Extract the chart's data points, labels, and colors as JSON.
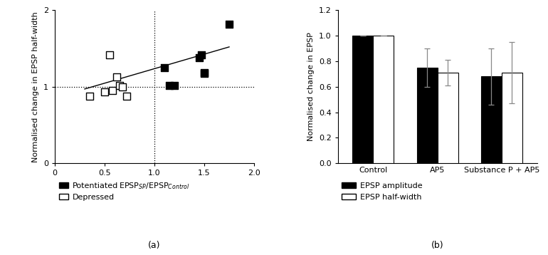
{
  "scatter": {
    "potentiated_x": [
      1.1,
      1.2,
      1.45,
      1.47,
      1.5,
      1.5,
      1.15,
      1.75
    ],
    "potentiated_y": [
      1.25,
      1.02,
      1.38,
      1.42,
      1.17,
      1.18,
      1.02,
      1.82
    ],
    "depressed_x": [
      0.35,
      0.5,
      0.55,
      0.58,
      0.62,
      0.65,
      0.68,
      0.72
    ],
    "depressed_y": [
      0.88,
      0.93,
      1.42,
      0.95,
      1.13,
      1.02,
      1.0,
      0.88
    ],
    "fit_x": [
      0.3,
      1.75
    ],
    "fit_y": [
      0.97,
      1.52
    ],
    "xlabel": "EPSP$_{SP}$/EPSP$_{Control}$",
    "ylabel": "Normalised change in EPSP half-width",
    "xlim": [
      0,
      2.0
    ],
    "ylim": [
      0,
      2.0
    ],
    "xticks": [
      0,
      0.5,
      1.0,
      1.5,
      2.0
    ],
    "yticks": [
      0,
      1,
      2
    ],
    "hline": 1.0,
    "vline": 1.0,
    "label_a": "(a)"
  },
  "bar": {
    "categories": [
      "Control",
      "AP5",
      "Substance P + AP5"
    ],
    "amplitude_values": [
      1.0,
      0.75,
      0.68
    ],
    "halfwidth_values": [
      1.0,
      0.71,
      0.71
    ],
    "amplitude_errors": [
      0.0,
      0.15,
      0.22
    ],
    "halfwidth_errors": [
      0.0,
      0.1,
      0.24
    ],
    "ylabel": "Normalised change in EPSP",
    "ylim": [
      0,
      1.2
    ],
    "yticks": [
      0.0,
      0.2,
      0.4,
      0.6,
      0.8,
      1.0,
      1.2
    ],
    "bar_width": 0.32,
    "color_amplitude": "#000000",
    "color_halfwidth": "#ffffff",
    "error_color": "#888888",
    "label_b": "(b)"
  }
}
